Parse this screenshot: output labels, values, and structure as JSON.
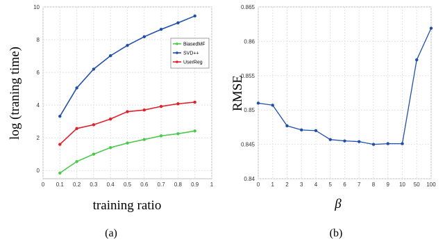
{
  "chart_data": [
    {
      "type": "line",
      "caption": "(a)",
      "xlabel": "training ratio",
      "ylabel": "log (traning time)",
      "xlim": [
        0,
        1
      ],
      "ylim": [
        -0.5,
        10
      ],
      "xticks": [
        "0",
        "0.1",
        "0.2",
        "0.3",
        "0.4",
        "0.5",
        "0.6",
        "0.7",
        "0.8",
        "0.9",
        "1"
      ],
      "yticks": [
        "0",
        "2",
        "4",
        "6",
        "8",
        "10"
      ],
      "x": [
        0.1,
        0.2,
        0.3,
        0.4,
        0.5,
        0.6,
        0.7,
        0.8,
        0.9
      ],
      "grid": true,
      "legend_position": "center-right",
      "series": [
        {
          "name": "BiasedMF",
          "color": "#4cc94c",
          "values": [
            -0.15,
            0.55,
            1.0,
            1.4,
            1.68,
            1.9,
            2.12,
            2.25,
            2.42
          ]
        },
        {
          "name": "SVD++",
          "color": "#1f4fa8",
          "values": [
            3.32,
            5.05,
            6.2,
            7.02,
            7.65,
            8.18,
            8.63,
            9.03,
            9.45
          ]
        },
        {
          "name": "UserReg",
          "color": "#e0202a",
          "values": [
            1.6,
            2.57,
            2.8,
            3.15,
            3.6,
            3.7,
            3.92,
            4.08,
            4.18
          ]
        }
      ]
    },
    {
      "type": "line",
      "caption": "(b)",
      "xlabel": "β",
      "ylabel": "RMSE",
      "categories": [
        "0",
        "1",
        "2",
        "3",
        "4",
        "5",
        "6",
        "7",
        "8",
        "9",
        "10",
        "50",
        "100"
      ],
      "ylim": [
        0.84,
        0.865
      ],
      "yticks": [
        "0.84",
        "0.845",
        "0.85",
        "0.855",
        "0.86",
        "0.865"
      ],
      "grid": true,
      "series": [
        {
          "color": "#1f4fa8",
          "values": [
            0.851,
            0.8507,
            0.8477,
            0.8471,
            0.847,
            0.8457,
            0.8455,
            0.8454,
            0.845,
            0.8451,
            0.8451,
            0.8573,
            0.8619
          ]
        }
      ]
    }
  ]
}
